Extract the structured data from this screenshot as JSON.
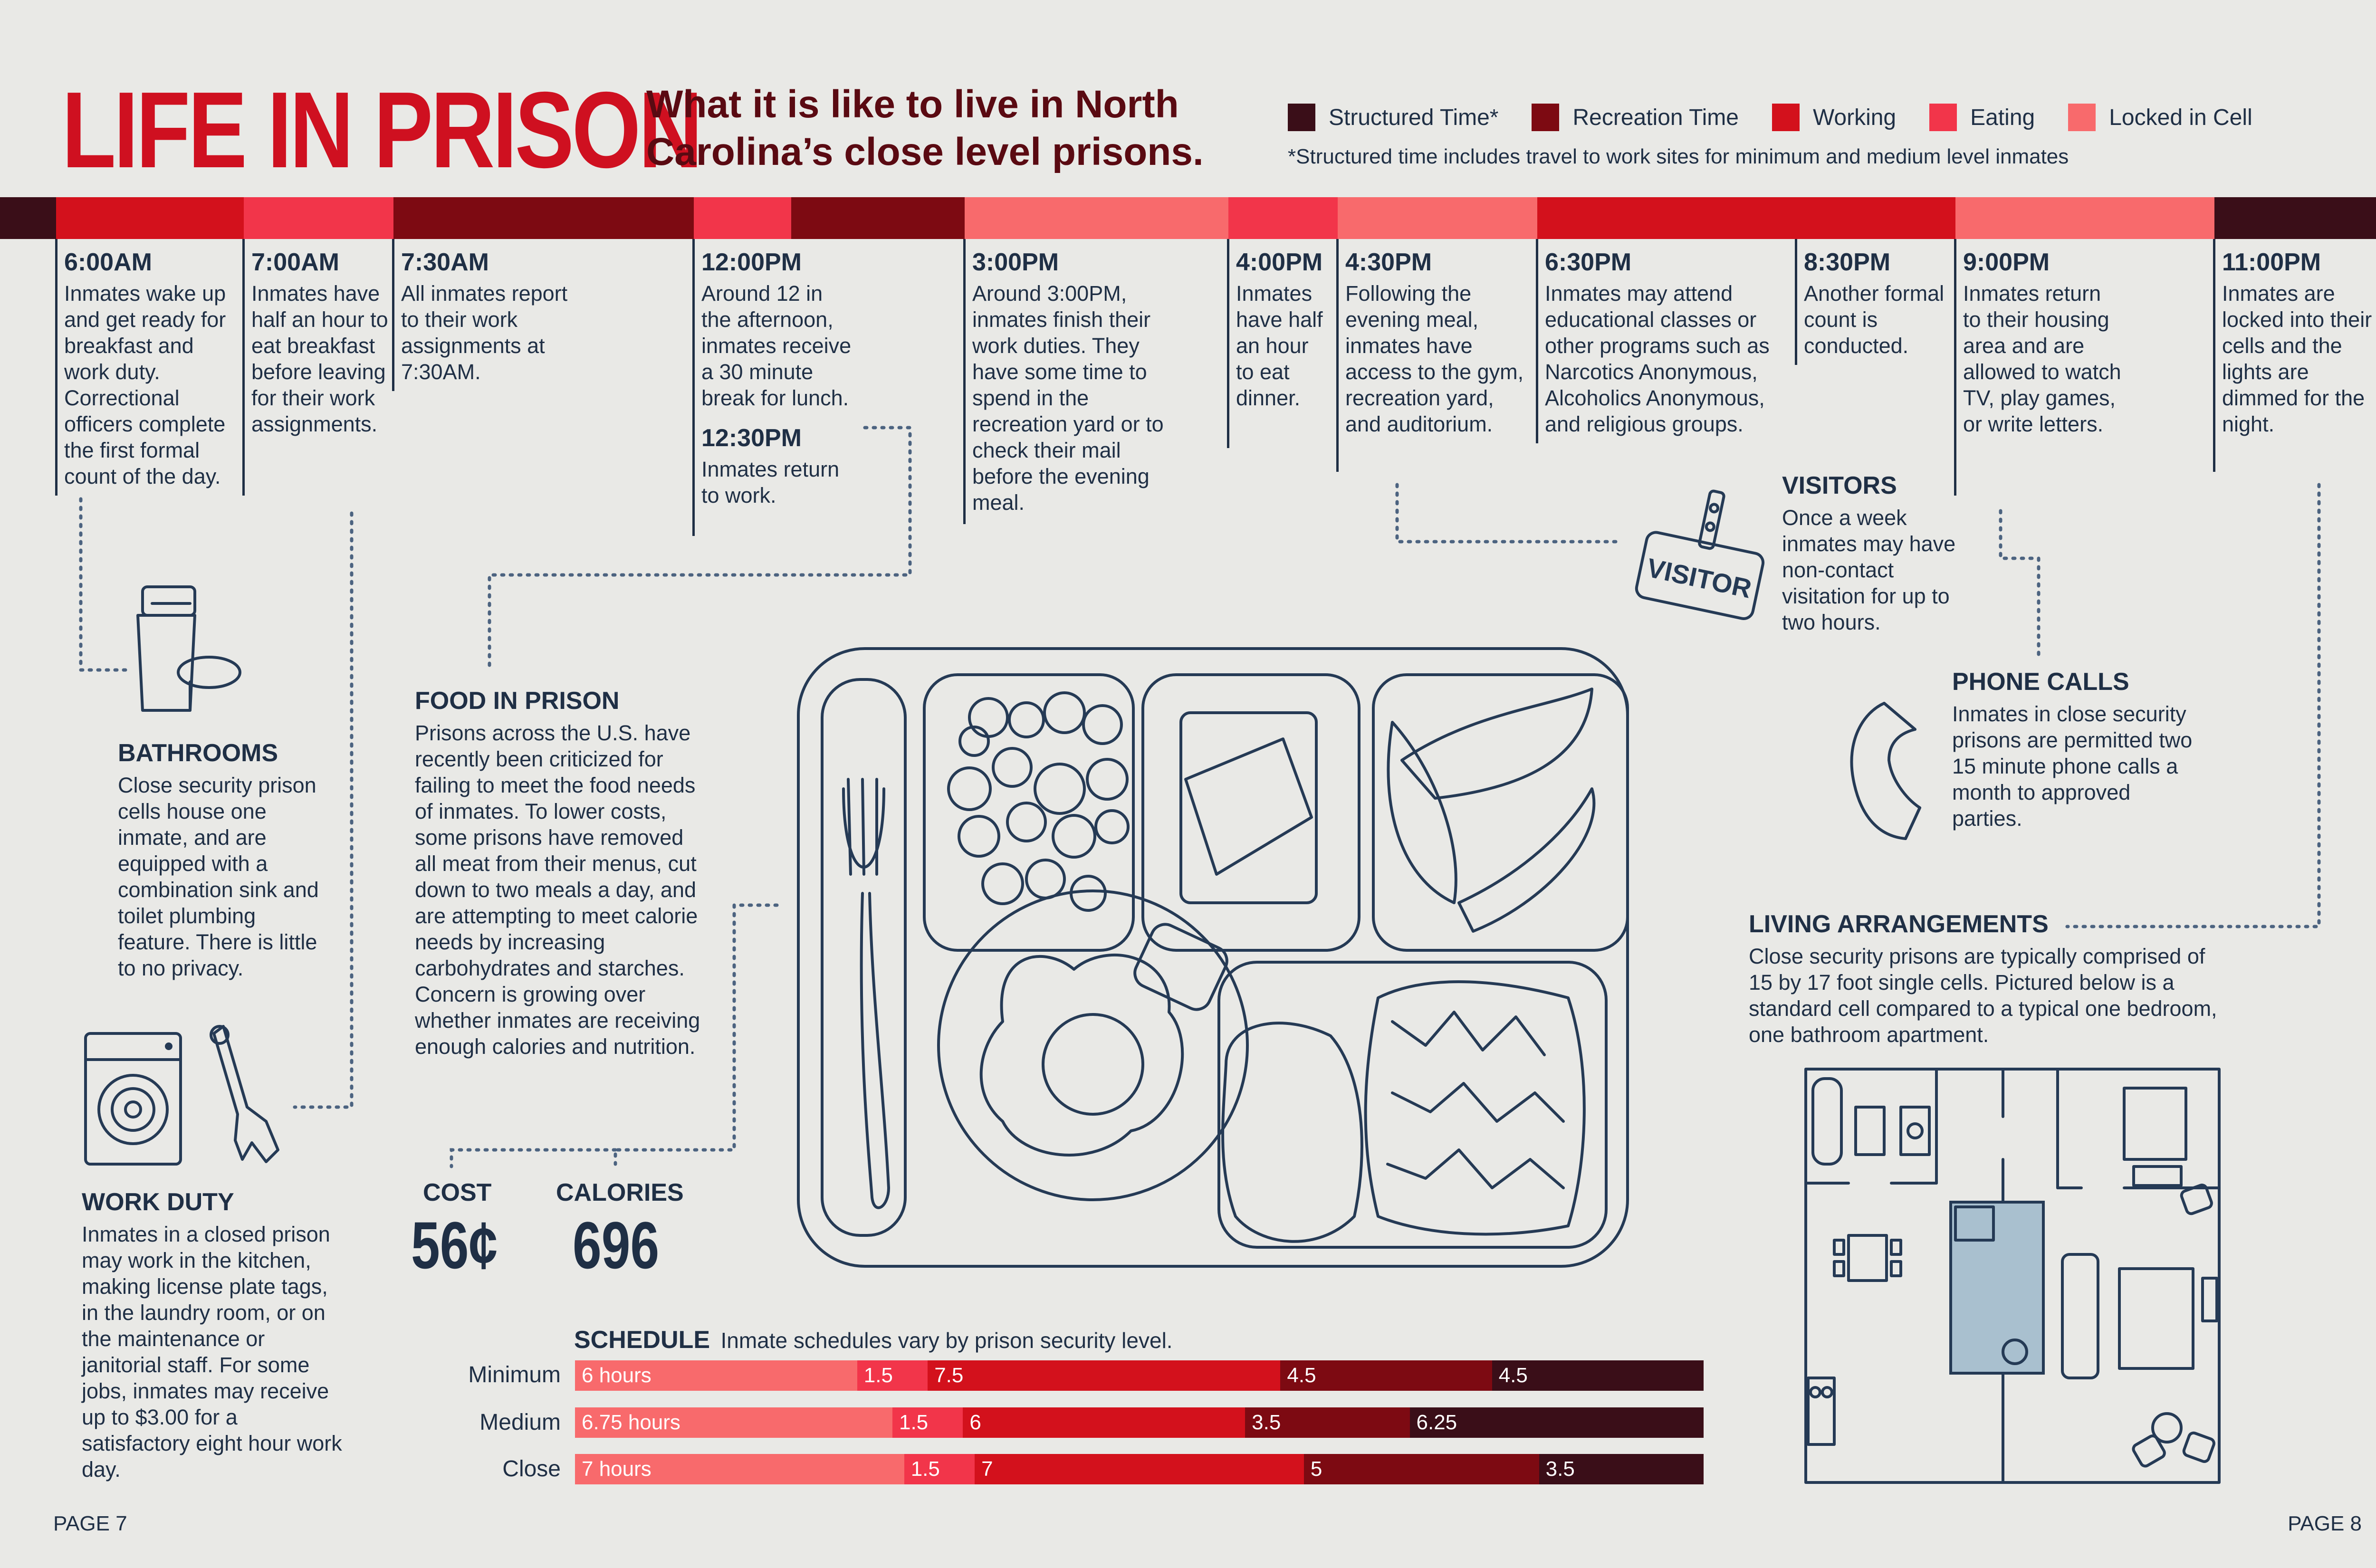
{
  "header": {
    "title": "LIFE IN PRISON",
    "subtitle_line1": "What it is like to live in North",
    "subtitle_line2": "Carolina’s close level prisons."
  },
  "legend": {
    "items": [
      {
        "label": "Structured Time*",
        "color": "#3a0e18"
      },
      {
        "label": "Recreation Time",
        "color": "#7d0a12"
      },
      {
        "label": "Working",
        "color": "#d3111c"
      },
      {
        "label": "Eating",
        "color": "#f2354a"
      },
      {
        "label": "Locked in Cell",
        "color": "#f86a6c"
      }
    ],
    "note": "*Structured time includes travel to work sites for minimum and medium level inmates"
  },
  "timeline": [
    {
      "time": "6:00AM",
      "text": "Inmates wake up and get ready for breakfast and work duty. Correctional officers complete the first formal count of the day."
    },
    {
      "time": "7:00AM",
      "text": "Inmates have half an hour to eat breakfast before leaving for their work assignments."
    },
    {
      "time": "7:30AM",
      "text": "All inmates report to their work assignments at 7:30AM."
    },
    {
      "time": "12:00PM",
      "text": "Around 12 in the afternoon, inmates receive a 30 minute break for lunch.",
      "time2": "12:30PM",
      "text2": "Inmates return to work."
    },
    {
      "time": "3:00PM",
      "text": "Around 3:00PM, inmates finish their work duties. They have some time to spend in the recreation yard or to check their mail before the evening meal."
    },
    {
      "time": "4:00PM",
      "text": "Inmates have half an hour to eat dinner."
    },
    {
      "time": "4:30PM",
      "text": "Following the evening meal, inmates have access to the gym, recreation yard, and auditorium."
    },
    {
      "time": "6:30PM",
      "text": "Inmates may attend educational classes or other programs such as Narcotics Anonymous, Alcoholics Anonymous, and religious groups."
    },
    {
      "time": "8:30PM",
      "text": "Another formal count is conducted."
    },
    {
      "time": "9:00PM",
      "text": "Inmates return to their housing area and are allowed to watch TV, play games, or write letters."
    },
    {
      "time": "11:00PM",
      "text": "Inmates are locked into their cells and the lights are dimmed for the night."
    }
  ],
  "sections": {
    "bathrooms": {
      "title": "BATHROOMS",
      "text": "Close security prison cells house one inmate, and are equipped with a combination sink and toilet plumbing feature. There is little to no privacy."
    },
    "work_duty": {
      "title": "WORK DUTY",
      "text": "Inmates in a closed prison may work in the kitchen, making license plate tags, in the laundry room, or on the maintenance or janitorial staff. For some jobs, inmates may receive up to $3.00 for a satisfactory eight hour work day."
    },
    "food": {
      "title": "FOOD IN PRISON",
      "text": "Prisons across the U.S. have recently been criticized for failing to meet the food needs of inmates. To lower costs, some prisons have removed all meat from their menus, cut down to two meals a day, and are attempting to meet calorie needs by increasing carbohydrates and starches. Concern is growing over whether inmates are receiving enough calories and nutrition."
    },
    "visitors": {
      "title": "VISITORS",
      "text": "Once a week inmates may have non-contact visitation for up to two hours."
    },
    "phone": {
      "title": "PHONE CALLS",
      "text": "Inmates in close security prisons are permitted two 15 minute phone calls a month to approved parties."
    },
    "living": {
      "title": "LIVING ARRANGEMENTS",
      "text": "Close security prisons are typically comprised of 15 by 17 foot single cells. Pictured below is a standard cell compared to a typical one bedroom, one bathroom apartment."
    }
  },
  "stats": {
    "cost_label": "COST",
    "cost_value": "56¢",
    "calories_label": "CALORIES",
    "calories_value": "696"
  },
  "visitor_badge": "VISITOR",
  "schedule": {
    "title": "SCHEDULE",
    "subtitle": "Inmate schedules vary by prison security level.",
    "rows": [
      {
        "label": "Minimum",
        "segments": [
          {
            "label": "6 hours",
            "value": 6
          },
          {
            "label": "1.5",
            "value": 1.5
          },
          {
            "label": "7.5",
            "value": 7.5
          },
          {
            "label": "4.5",
            "value": 4.5
          },
          {
            "label": "4.5",
            "value": 4.5
          }
        ]
      },
      {
        "label": "Medium",
        "segments": [
          {
            "label": "6.75 hours",
            "value": 6.75
          },
          {
            "label": "1.5",
            "value": 1.5
          },
          {
            "label": "6",
            "value": 6
          },
          {
            "label": "3.5",
            "value": 3.5
          },
          {
            "label": "6.25",
            "value": 6.25
          }
        ]
      },
      {
        "label": "Close",
        "segments": [
          {
            "label": "7 hours",
            "value": 7
          },
          {
            "label": "1.5",
            "value": 1.5
          },
          {
            "label": "7",
            "value": 7
          },
          {
            "label": "5",
            "value": 5
          },
          {
            "label": "3.5",
            "value": 3.5
          }
        ]
      }
    ],
    "segment_colors": [
      "#f86a6c",
      "#f2354a",
      "#d3111c",
      "#7d0a12",
      "#3a0e18"
    ]
  },
  "pages": {
    "left": "PAGE 7",
    "right": "PAGE 8"
  }
}
